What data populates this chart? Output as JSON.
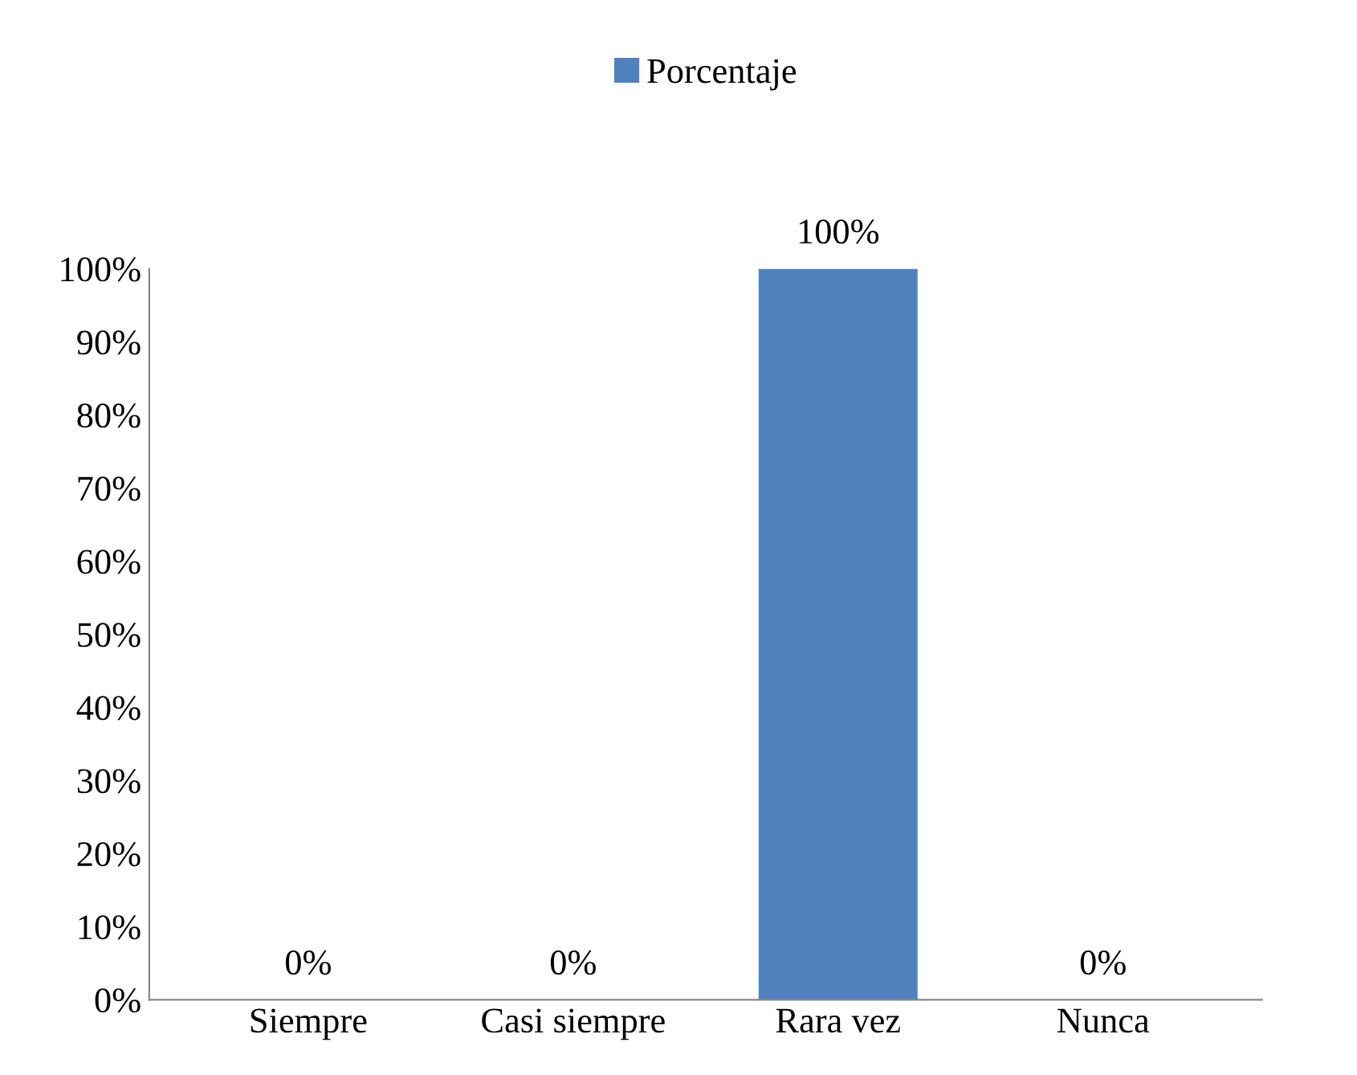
{
  "chart_data": {
    "type": "bar",
    "categories": [
      "Siempre",
      "Casi siempre",
      "Rara vez",
      "Nunca"
    ],
    "series": [
      {
        "name": "Porcentaje",
        "color": "#4f81bd",
        "values": [
          0,
          0,
          100,
          0
        ]
      }
    ],
    "value_labels": [
      "0%",
      "0%",
      "100%",
      "0%"
    ],
    "ylim": [
      0,
      100
    ],
    "yticks": [
      {
        "value": 0,
        "label": "0%"
      },
      {
        "value": 10,
        "label": "10%"
      },
      {
        "value": 20,
        "label": "20%"
      },
      {
        "value": 30,
        "label": "30%"
      },
      {
        "value": 40,
        "label": "40%"
      },
      {
        "value": 50,
        "label": "50%"
      },
      {
        "value": 60,
        "label": "60%"
      },
      {
        "value": 70,
        "label": "70%"
      },
      {
        "value": 80,
        "label": "80%"
      },
      {
        "value": 90,
        "label": "90%"
      },
      {
        "value": 100,
        "label": "100%"
      }
    ],
    "grid": false,
    "legend": "top"
  }
}
